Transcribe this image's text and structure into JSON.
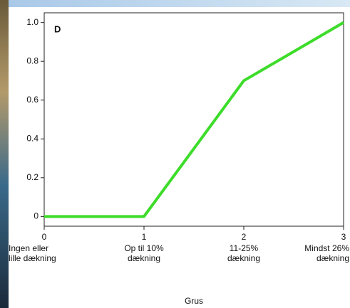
{
  "chart_data": {
    "type": "line",
    "annotation": "D",
    "xlabel": "Grus",
    "x": [
      0,
      1,
      2,
      3
    ],
    "xticks": [
      0,
      1,
      2,
      3
    ],
    "xtick_texts": [
      [
        "Ingen eller",
        "lille dækning"
      ],
      [
        "Op til 10%",
        "dækning"
      ],
      [
        "11-25%",
        "dækning"
      ],
      [
        "Mindst 26%",
        "dækning"
      ]
    ],
    "xlim": [
      0,
      3
    ],
    "ylim": [
      -0.05,
      1.05
    ],
    "yticks": [
      0,
      0.2,
      0.4,
      0.6,
      0.8,
      {
        "value": 1,
        "label": "1.0"
      }
    ],
    "series": [
      {
        "color": "#3ddc2a",
        "values": [
          0,
          0,
          0.7,
          1
        ]
      }
    ]
  }
}
